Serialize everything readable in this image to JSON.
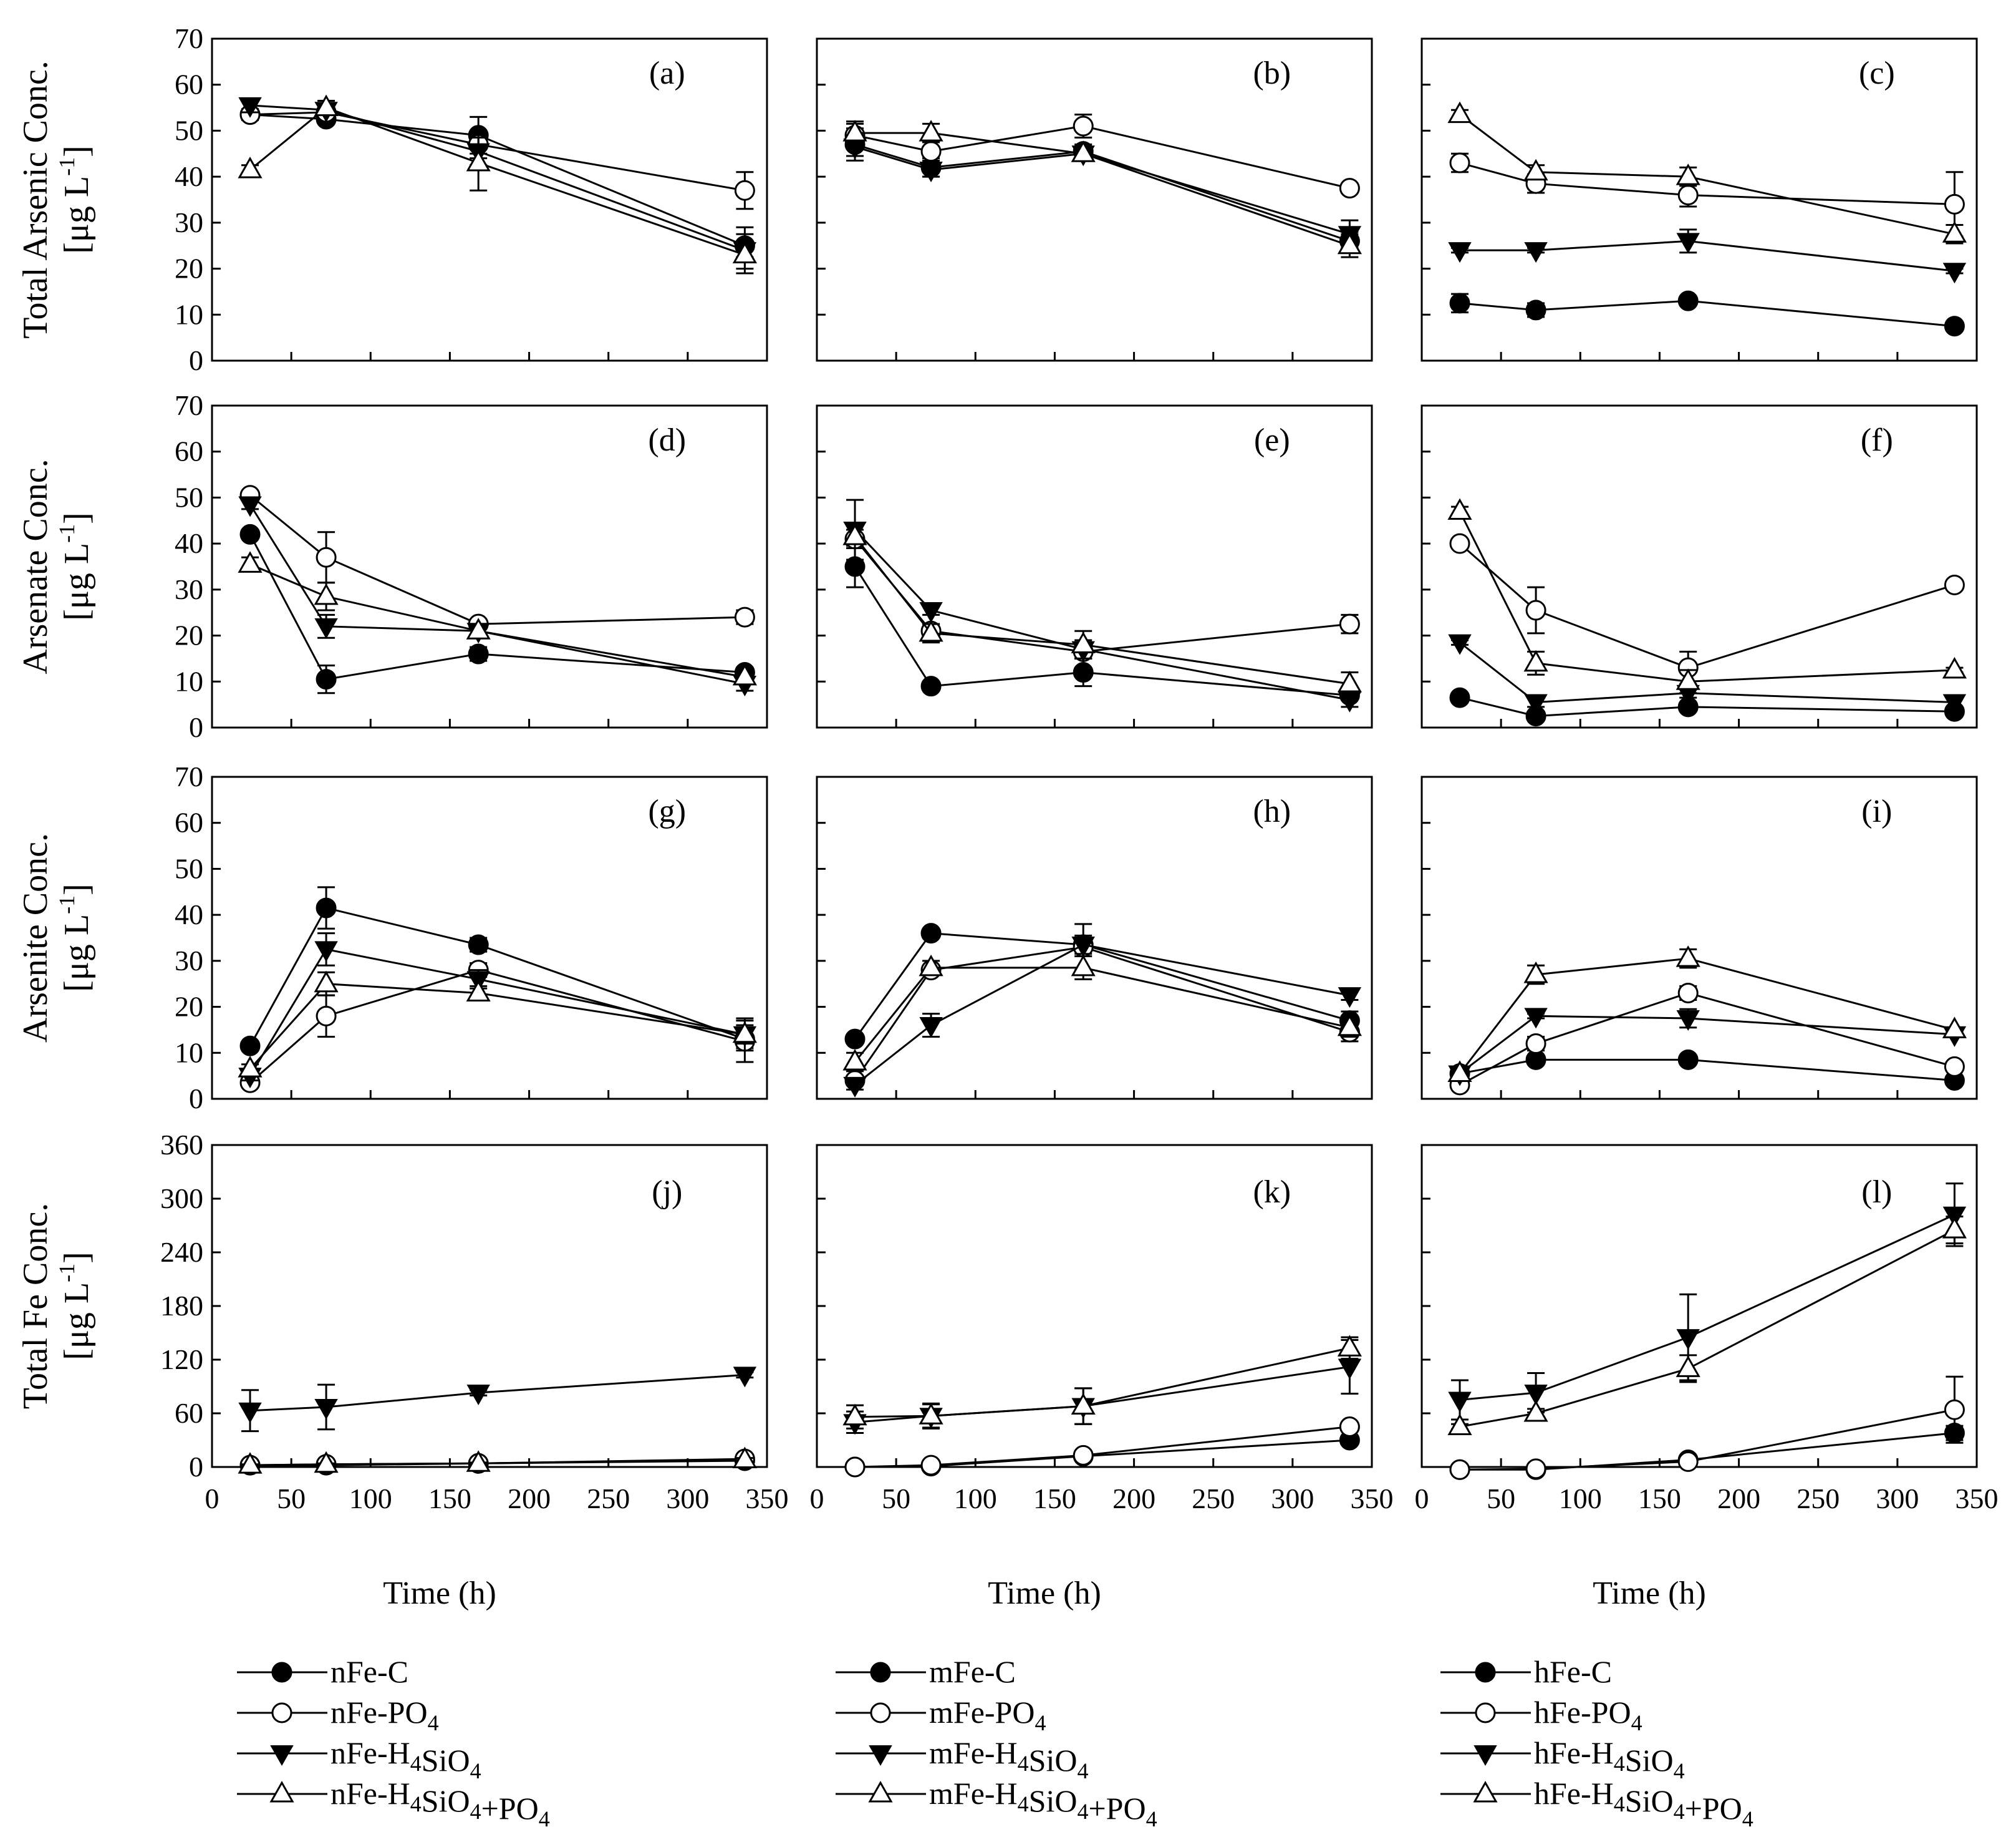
{
  "chart_data": {
    "type": "line",
    "x_ticks": [
      0,
      50,
      100,
      150,
      200,
      250,
      300,
      350
    ],
    "xlim": [
      0,
      350
    ],
    "x_title": "Time (h)",
    "row_titles": [
      {
        "main": "Total Arsenic Conc.",
        "unit_prefix": "[μg L",
        "unit_sup": "-1",
        "unit_suffix": "]"
      },
      {
        "main": "Arsenate Conc.",
        "unit_prefix": "[μg L",
        "unit_sup": "-1",
        "unit_suffix": "]"
      },
      {
        "main": "Arsenite Conc.",
        "unit_prefix": "[μg L",
        "unit_sup": "-1",
        "unit_suffix": "]"
      },
      {
        "main": "Total Fe  Conc.",
        "unit_prefix": "[μg L",
        "unit_sup": "-1",
        "unit_suffix": "]"
      }
    ],
    "rows_ylim": [
      [
        0,
        70
      ],
      [
        0,
        70
      ],
      [
        0,
        70
      ],
      [
        0,
        360
      ]
    ],
    "rows_yticks": [
      [
        0,
        10,
        20,
        30,
        40,
        50,
        60,
        70
      ],
      [
        0,
        10,
        20,
        30,
        40,
        50,
        60,
        70
      ],
      [
        0,
        10,
        20,
        30,
        40,
        50,
        60,
        70
      ],
      [
        0,
        60,
        120,
        180,
        240,
        300,
        360
      ]
    ],
    "marker_styles": [
      "filled-circle",
      "open-circle",
      "filled-triangle-down",
      "open-triangle-up"
    ],
    "panels": [
      {
        "label": "(a)",
        "x": [
          24,
          72,
          168,
          336
        ],
        "series": [
          {
            "values": [
              53.5,
              52.5,
              49.0,
              25.0
            ],
            "err": [
              1.2,
              1.0,
              4.0,
              2.5
            ]
          },
          {
            "values": [
              53.5,
              54.0,
              47.0,
              37.0
            ],
            "err": [
              1.0,
              1.0,
              3.0,
              4.0
            ]
          },
          {
            "values": [
              55.5,
              54.5,
              45.5,
              24.0
            ],
            "err": [
              1.5,
              1.0,
              3.0,
              5.0
            ]
          },
          {
            "values": [
              41.5,
              55.0,
              43.0,
              23.0
            ],
            "err": [
              1.0,
              1.5,
              6.0,
              3.0
            ]
          }
        ]
      },
      {
        "label": "(b)",
        "x": [
          24,
          72,
          168,
          336
        ],
        "series": [
          {
            "values": [
              47.0,
              42.0,
              45.5,
              26.0
            ],
            "err": [
              3.5,
              2.0,
              1.5,
              2.0
            ]
          },
          {
            "values": [
              49.0,
              45.5,
              51.0,
              37.5
            ],
            "err": [
              3.0,
              2.0,
              2.5,
              1.0
            ]
          },
          {
            "values": [
              46.5,
              41.5,
              45.0,
              27.5
            ],
            "err": [
              2.0,
              1.5,
              1.5,
              3.0
            ]
          },
          {
            "values": [
              49.5,
              49.5,
              45.0,
              25.0
            ],
            "err": [
              2.0,
              2.0,
              1.5,
              2.5
            ]
          }
        ]
      },
      {
        "label": "(c)",
        "x": [
          24,
          72,
          168,
          336
        ],
        "series": [
          {
            "values": [
              12.5,
              11.0,
              13.0,
              7.5
            ],
            "err": [
              2.0,
              1.5,
              1.0,
              0.5
            ]
          },
          {
            "values": [
              43.0,
              38.5,
              36.0,
              34.0
            ],
            "err": [
              2.0,
              2.0,
              2.5,
              7.0
            ]
          },
          {
            "values": [
              24.0,
              24.0,
              26.0,
              19.5
            ],
            "err": [
              0.5,
              0.5,
              2.5,
              0.5
            ]
          },
          {
            "values": [
              53.5,
              41.0,
              40.0,
              27.5
            ],
            "err": [
              1.0,
              1.5,
              2.0,
              2.0
            ]
          }
        ]
      },
      {
        "label": "(d)",
        "x": [
          24,
          72,
          168,
          336
        ],
        "series": [
          {
            "values": [
              42.0,
              10.5,
              16.0,
              12.0
            ],
            "err": [
              1.0,
              3.0,
              1.5,
              1.0
            ]
          },
          {
            "values": [
              50.5,
              37.0,
              22.5,
              24.0
            ],
            "err": [
              1.0,
              5.5,
              1.0,
              1.5
            ]
          },
          {
            "values": [
              48.5,
              22.0,
              21.0,
              9.5
            ],
            "err": [
              1.0,
              2.5,
              1.0,
              1.5
            ]
          },
          {
            "values": [
              35.5,
              28.5,
              21.0,
              11.0
            ],
            "err": [
              1.5,
              3.0,
              1.0,
              1.0
            ]
          }
        ]
      },
      {
        "label": "(e)",
        "x": [
          24,
          72,
          168,
          336
        ],
        "series": [
          {
            "values": [
              35.0,
              9.0,
              12.0,
              7.0
            ],
            "err": [
              4.5,
              1.0,
              3.0,
              1.0
            ]
          },
          {
            "values": [
              41.0,
              21.0,
              16.5,
              22.5
            ],
            "err": [
              2.0,
              1.5,
              1.5,
              2.0
            ]
          },
          {
            "values": [
              43.0,
              25.5,
              17.0,
              6.0
            ],
            "err": [
              6.5,
              1.0,
              2.0,
              1.5
            ]
          },
          {
            "values": [
              41.5,
              20.5,
              18.0,
              9.5
            ],
            "err": [
              2.5,
              2.0,
              3.0,
              2.5
            ]
          }
        ]
      },
      {
        "label": "(f)",
        "x": [
          24,
          72,
          168,
          336
        ],
        "series": [
          {
            "values": [
              6.5,
              2.5,
              4.5,
              3.5
            ],
            "err": [
              0.5,
              0.5,
              1.0,
              1.0
            ]
          },
          {
            "values": [
              40.0,
              25.5,
              13.0,
              31.0
            ],
            "err": [
              1.0,
              5.0,
              3.5,
              0.5
            ]
          },
          {
            "values": [
              18.5,
              5.5,
              7.5,
              5.5
            ],
            "err": [
              0.5,
              1.0,
              1.0,
              1.5
            ]
          },
          {
            "values": [
              47.0,
              14.0,
              10.0,
              12.5
            ],
            "err": [
              1.0,
              2.5,
              2.5,
              0.5
            ]
          }
        ]
      },
      {
        "label": "(g)",
        "x": [
          24,
          72,
          168,
          336
        ],
        "series": [
          {
            "values": [
              11.5,
              41.5,
              33.5,
              13.0
            ],
            "err": [
              1.0,
              4.5,
              1.5,
              2.0
            ]
          },
          {
            "values": [
              3.5,
              18.0,
              28.0,
              12.5
            ],
            "err": [
              1.0,
              4.5,
              1.5,
              4.5
            ]
          },
          {
            "values": [
              5.0,
              32.5,
              26.0,
              14.0
            ],
            "err": [
              1.0,
              3.5,
              2.0,
              2.0
            ]
          },
          {
            "values": [
              6.5,
              25.0,
              23.0,
              14.0
            ],
            "err": [
              1.0,
              2.5,
              1.5,
              3.5
            ]
          }
        ]
      },
      {
        "label": "(h)",
        "x": [
          24,
          72,
          168,
          336
        ],
        "series": [
          {
            "values": [
              13.0,
              36.0,
              33.5,
              17.0
            ],
            "err": [
              1.0,
              1.0,
              1.0,
              2.0
            ]
          },
          {
            "values": [
              4.0,
              28.0,
              33.0,
              14.5
            ],
            "err": [
              1.0,
              1.0,
              5.0,
              2.0
            ]
          },
          {
            "values": [
              3.0,
              16.0,
              33.5,
              22.5
            ],
            "err": [
              1.0,
              2.5,
              2.0,
              1.0
            ]
          },
          {
            "values": [
              8.0,
              28.5,
              28.5,
              15.5
            ],
            "err": [
              2.0,
              1.5,
              2.5,
              2.0
            ]
          }
        ]
      },
      {
        "label": "(i)",
        "x": [
          24,
          72,
          168,
          336
        ],
        "series": [
          {
            "values": [
              5.5,
              8.5,
              8.5,
              4.0
            ],
            "err": [
              0.5,
              1.0,
              0.5,
              0.5
            ]
          },
          {
            "values": [
              3.0,
              12.0,
              23.0,
              7.0
            ],
            "err": [
              0.5,
              1.5,
              1.5,
              0.5
            ]
          },
          {
            "values": [
              5.5,
              18.0,
              17.5,
              14.0
            ],
            "err": [
              0.5,
              0.5,
              2.0,
              0.5
            ]
          },
          {
            "values": [
              5.5,
              27.0,
              30.5,
              15.0
            ],
            "err": [
              0.5,
              2.0,
              2.0,
              0.5
            ]
          }
        ]
      },
      {
        "label": "(j)",
        "x": [
          24,
          72,
          168,
          336
        ],
        "series": [
          {
            "values": [
              2,
              2,
              4,
              7
            ],
            "err": [
              1,
              1,
              1,
              1
            ]
          },
          {
            "values": [
              2,
              3,
              4,
              9
            ],
            "err": [
              1,
              1,
              1,
              2
            ]
          },
          {
            "values": [
              63,
              67,
              83,
              103
            ],
            "err": [
              23,
              25,
              3,
              3
            ]
          },
          {
            "values": [
              2,
              3,
              4,
              8
            ],
            "err": [
              1,
              1,
              1,
              2
            ]
          }
        ]
      },
      {
        "label": "(k)",
        "x": [
          24,
          72,
          168,
          336
        ],
        "series": [
          {
            "values": [
              0,
              1,
              12,
              30
            ],
            "err": [
              1,
              1,
              3,
              3
            ]
          },
          {
            "values": [
              0,
              2,
              13,
              45
            ],
            "err": [
              1,
              1,
              3,
              4
            ]
          },
          {
            "values": [
              50,
              57,
              68,
              112
            ],
            "err": [
              12,
              13,
              20,
              30
            ]
          },
          {
            "values": [
              56,
              57,
              68,
              133
            ],
            "err": [
              13,
              14,
              20,
              12
            ]
          }
        ]
      },
      {
        "label": "(l)",
        "x": [
          24,
          72,
          168,
          336
        ],
        "series": [
          {
            "values": [
              -3,
              -3,
              8,
              38
            ],
            "err": [
              1,
              1,
              2,
              8
            ]
          },
          {
            "values": [
              -3,
              -2,
              6,
              64
            ],
            "err": [
              1,
              1,
              2,
              37
            ]
          },
          {
            "values": [
              75,
              83,
              145,
              282
            ],
            "err": [
              22,
              22,
              48,
              35
            ]
          },
          {
            "values": [
              45,
              60,
              110,
              265
            ],
            "err": [
              3,
              5,
              15,
              15
            ]
          }
        ]
      }
    ],
    "legend_columns": [
      [
        {
          "parts": [
            {
              "t": "nFe-C"
            }
          ]
        },
        {
          "parts": [
            {
              "t": "nFe-PO"
            },
            {
              "t": "4",
              "sub": true
            }
          ]
        },
        {
          "parts": [
            {
              "t": "nFe-H"
            },
            {
              "t": "4",
              "sub": true
            },
            {
              "t": "SiO"
            },
            {
              "t": "4",
              "sub": true
            }
          ]
        },
        {
          "parts": [
            {
              "t": "nFe-H"
            },
            {
              "t": "4",
              "sub": true
            },
            {
              "t": "SiO"
            },
            {
              "t": "4",
              "sub": true
            },
            {
              "t": "+PO"
            },
            {
              "t": "4",
              "sub": true
            }
          ]
        }
      ],
      [
        {
          "parts": [
            {
              "t": "mFe-C"
            }
          ]
        },
        {
          "parts": [
            {
              "t": "mFe-PO"
            },
            {
              "t": "4",
              "sub": true
            }
          ]
        },
        {
          "parts": [
            {
              "t": "mFe-H"
            },
            {
              "t": "4",
              "sub": true
            },
            {
              "t": "SiO"
            },
            {
              "t": "4",
              "sub": true
            }
          ]
        },
        {
          "parts": [
            {
              "t": "mFe-H"
            },
            {
              "t": "4",
              "sub": true
            },
            {
              "t": "SiO"
            },
            {
              "t": "4",
              "sub": true
            },
            {
              "t": "+PO"
            },
            {
              "t": "4",
              "sub": true
            }
          ]
        }
      ],
      [
        {
          "parts": [
            {
              "t": "hFe-C"
            }
          ]
        },
        {
          "parts": [
            {
              "t": "hFe-PO"
            },
            {
              "t": "4",
              "sub": true
            }
          ]
        },
        {
          "parts": [
            {
              "t": "hFe-H"
            },
            {
              "t": "4",
              "sub": true
            },
            {
              "t": "SiO"
            },
            {
              "t": "4",
              "sub": true
            }
          ]
        },
        {
          "parts": [
            {
              "t": "hFe-H"
            },
            {
              "t": "4",
              "sub": true
            },
            {
              "t": "SiO"
            },
            {
              "t": "4",
              "sub": true
            },
            {
              "t": "+PO"
            },
            {
              "t": "4",
              "sub": true
            }
          ]
        }
      ]
    ]
  }
}
